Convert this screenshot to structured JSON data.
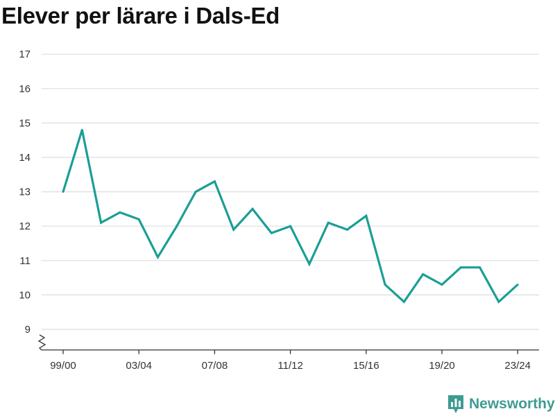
{
  "chart_data": {
    "type": "line",
    "title": "Elever per lärare i Dals-Ed",
    "xlabel": "",
    "ylabel": "",
    "x_tick_labels": [
      "99/00",
      "03/04",
      "07/08",
      "11/12",
      "15/16",
      "19/20",
      "23/24"
    ],
    "y_ticks": [
      9,
      10,
      11,
      12,
      13,
      14,
      15,
      16,
      17
    ],
    "ylim": [
      8.4,
      17
    ],
    "y_axis_break": true,
    "grid": true,
    "line_color": "#1a9e96",
    "categories": [
      "99/00",
      "00/01",
      "01/02",
      "02/03",
      "03/04",
      "04/05",
      "05/06",
      "06/07",
      "07/08",
      "08/09",
      "09/10",
      "10/11",
      "11/12",
      "12/13",
      "13/14",
      "14/15",
      "15/16",
      "16/17",
      "17/18",
      "18/19",
      "19/20",
      "20/21",
      "21/22",
      "22/23",
      "23/24"
    ],
    "values": [
      13.0,
      14.8,
      12.1,
      12.4,
      12.2,
      11.1,
      12.0,
      13.0,
      13.3,
      11.9,
      12.5,
      11.8,
      12.0,
      10.9,
      12.1,
      11.9,
      12.3,
      10.3,
      9.8,
      10.6,
      10.3,
      10.8,
      10.8,
      9.8,
      10.3
    ]
  },
  "brand": {
    "name": "Newsworthy",
    "color": "#3e9b93",
    "icon": "bar-chart-icon"
  }
}
